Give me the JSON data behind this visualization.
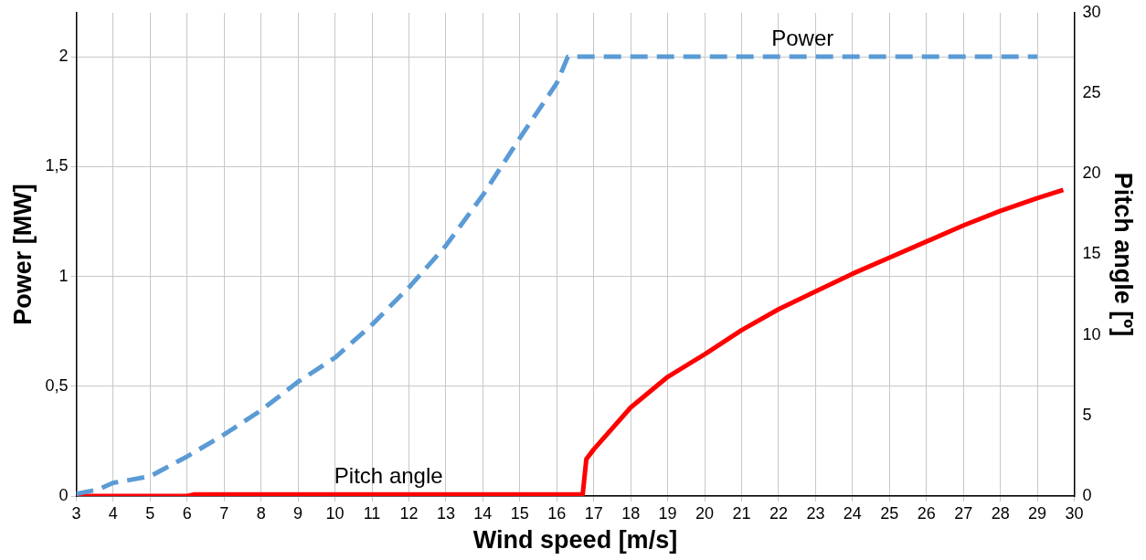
{
  "chart_data": {
    "type": "line",
    "xlabel": "Wind speed [m/s]",
    "ylabel": "Power [MW]",
    "y2label": "Pitch angle [º]",
    "xlim": [
      3,
      30
    ],
    "xticks": [
      3,
      4,
      5,
      6,
      7,
      8,
      9,
      10,
      11,
      12,
      13,
      14,
      15,
      16,
      17,
      18,
      19,
      20,
      21,
      22,
      23,
      24,
      25,
      26,
      27,
      28,
      29,
      30
    ],
    "ylim": [
      0,
      2.2
    ],
    "yticks": [
      0,
      {
        "value": 0.5,
        "label": "0,5"
      },
      1,
      {
        "value": 1.5,
        "label": "1,5"
      },
      2
    ],
    "y2lim": [
      0,
      30
    ],
    "y2ticks": [
      0,
      5,
      10,
      15,
      20,
      25,
      30
    ],
    "grid": true,
    "legend": false,
    "marker": "none",
    "series": [
      {
        "name": "Power",
        "color": "#5b9bd5",
        "line_style": "dashed",
        "x": [
          3,
          3.6,
          4,
          5,
          6,
          7,
          8,
          9,
          10,
          11,
          12,
          13,
          14,
          15,
          16,
          16.3,
          17,
          18,
          19,
          20,
          21,
          22,
          23,
          24,
          25,
          26,
          27,
          28,
          29
        ],
        "values": [
          0.01,
          0.03,
          0.06,
          0.09,
          0.18,
          0.28,
          0.39,
          0.52,
          0.63,
          0.78,
          0.95,
          1.14,
          1.37,
          1.63,
          1.88,
          2,
          2,
          2,
          2,
          2,
          2,
          2,
          2,
          2,
          2,
          2,
          2,
          2,
          2
        ]
      },
      {
        "name": "Pitch angle",
        "color": "#ff0000",
        "line_style": "solid",
        "axis": "y2",
        "x": [
          3,
          6,
          6.2,
          10,
          16.7,
          16.8,
          17,
          18,
          19,
          20,
          21,
          22,
          23,
          24,
          25,
          26,
          27,
          28,
          29,
          29.7
        ],
        "values": [
          0,
          0,
          0.1,
          0.1,
          0.1,
          2.3,
          2.9,
          5.5,
          7.4,
          8.8,
          10.3,
          11.6,
          12.7,
          13.8,
          14.8,
          15.8,
          16.8,
          17.7,
          18.5,
          19
        ]
      }
    ]
  }
}
